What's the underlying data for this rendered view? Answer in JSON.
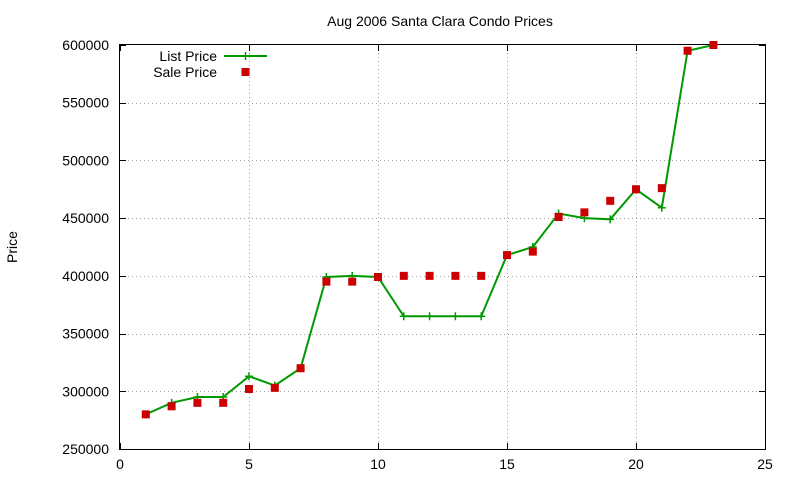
{
  "chart_data": {
    "type": "line",
    "title": "Aug 2006 Santa Clara Condo Prices",
    "xlabel": "",
    "ylabel": "Price",
    "xlim": [
      0,
      25
    ],
    "ylim": [
      250000,
      600000
    ],
    "x_ticks": [
      0,
      5,
      10,
      15,
      20,
      25
    ],
    "y_ticks": [
      250000,
      300000,
      350000,
      400000,
      450000,
      500000,
      550000,
      600000
    ],
    "grid": true,
    "legend_position": "top-left",
    "series": [
      {
        "name": "List Price",
        "style": "line-points",
        "color": "#009900",
        "points": [
          [
            1,
            280000
          ],
          [
            2,
            290000
          ],
          [
            3,
            295000
          ],
          [
            4,
            295000
          ],
          [
            5,
            313000
          ],
          [
            6,
            305000
          ],
          [
            7,
            320000
          ],
          [
            8,
            399000
          ],
          [
            9,
            400000
          ],
          [
            10,
            399000
          ],
          [
            11,
            365000
          ],
          [
            12,
            365000
          ],
          [
            13,
            365000
          ],
          [
            14,
            365000
          ],
          [
            15,
            418000
          ],
          [
            16,
            425000
          ],
          [
            17,
            454000
          ],
          [
            18,
            450000
          ],
          [
            19,
            449000
          ],
          [
            20,
            475000
          ],
          [
            21,
            459000
          ],
          [
            22,
            595000
          ],
          [
            23,
            600000
          ]
        ]
      },
      {
        "name": "Sale Price",
        "style": "points",
        "color": "#cc0000",
        "points": [
          [
            1,
            280000
          ],
          [
            2,
            287000
          ],
          [
            3,
            290000
          ],
          [
            4,
            290000
          ],
          [
            5,
            302000
          ],
          [
            6,
            303000
          ],
          [
            7,
            320000
          ],
          [
            8,
            395000
          ],
          [
            9,
            395000
          ],
          [
            10,
            399000
          ],
          [
            11,
            400000
          ],
          [
            12,
            400000
          ],
          [
            13,
            400000
          ],
          [
            14,
            400000
          ],
          [
            15,
            418000
          ],
          [
            16,
            421000
          ],
          [
            17,
            451000
          ],
          [
            18,
            455000
          ],
          [
            19,
            465000
          ],
          [
            20,
            475000
          ],
          [
            21,
            476000
          ],
          [
            22,
            595000
          ],
          [
            23,
            600000
          ]
        ]
      }
    ]
  }
}
